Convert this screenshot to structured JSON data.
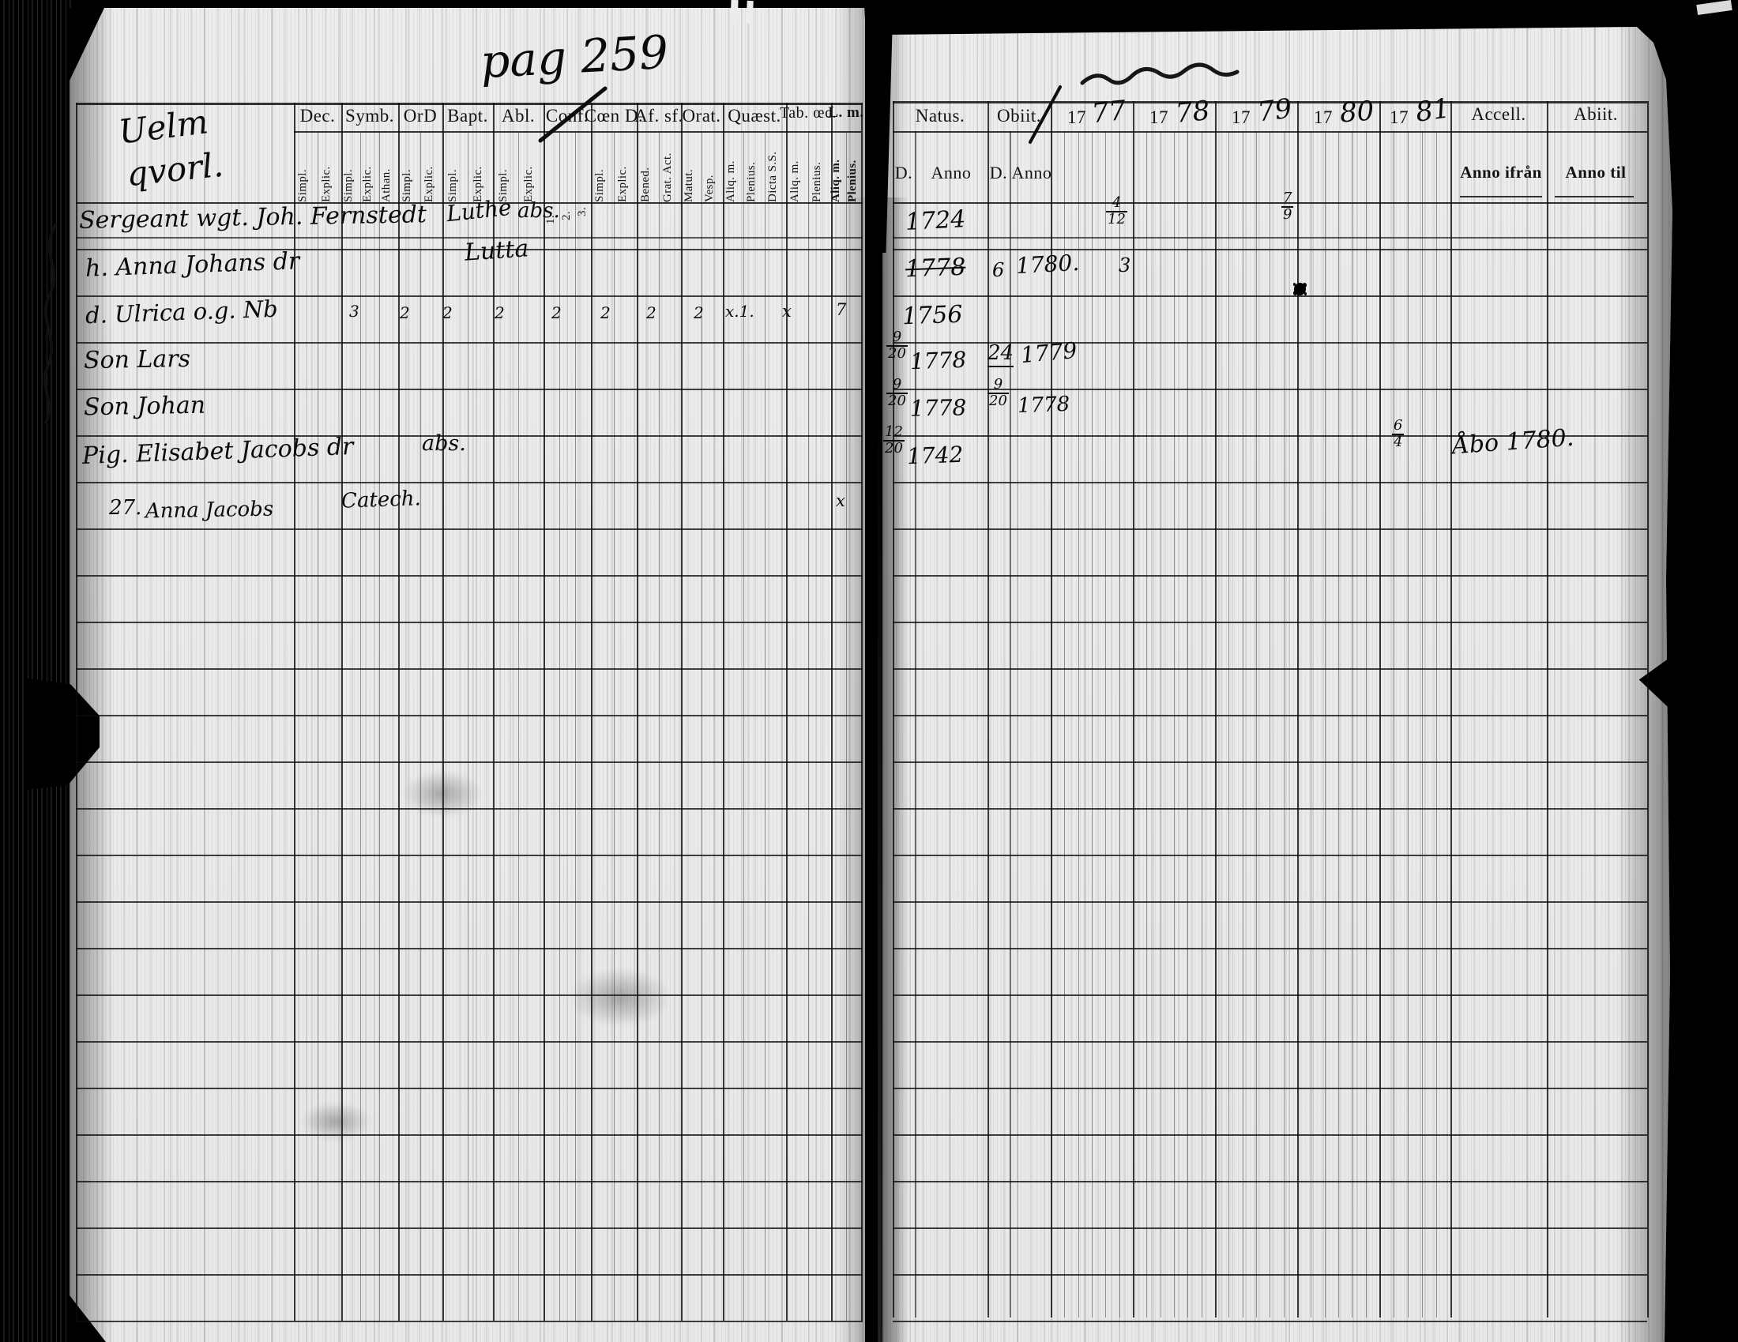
{
  "page_number": "pag 259",
  "left": {
    "title1": "Uelm",
    "title2": "qvorl.",
    "columns": [
      {
        "label": "Dec.",
        "subs": [
          "Simpl.",
          "Explic."
        ]
      },
      {
        "label": "Symb.",
        "subs": [
          "Simpl.",
          "Explic.",
          "Athan."
        ]
      },
      {
        "label": "OrD",
        "subs": [
          "Simpl.",
          "Explic."
        ]
      },
      {
        "label": "Bapt.",
        "subs": [
          "Simpl.",
          "Explic."
        ]
      },
      {
        "label": "Abl.",
        "subs": [
          "Simpl.",
          "Explic."
        ]
      },
      {
        "label": "Conf.",
        "subs": [
          "1.",
          "2.",
          "3."
        ]
      },
      {
        "label": "Cœn D.",
        "subs": [
          "Simpl.",
          "Explic."
        ]
      },
      {
        "label": "Af. sf.",
        "subs": [
          "Bened.",
          "Grat. Act."
        ]
      },
      {
        "label": "Orat.",
        "subs": [
          "Matut.",
          "Vesp."
        ]
      },
      {
        "label": "Quæst.",
        "subs": [
          "Aliq. m.",
          "Plenius.",
          "Dicta S.S."
        ]
      },
      {
        "label": "Tab. œc.",
        "subs": [
          "Aliq. m.",
          "Plenius."
        ]
      },
      {
        "label": "L. m.",
        "subs": [
          "Aliq. m.",
          "Plenius."
        ]
      }
    ],
    "rows": [
      {
        "name": "Sergeant wgt. Joh. Fernstedt",
        "note": "Luthe",
        "abs": "abs."
      },
      {
        "name": "h. Anna Johans dr",
        "note": "Lutta"
      },
      {
        "name": "d. Ulrica o.g. Nb",
        "marks": [
          "3",
          "2",
          "2",
          "2",
          "2",
          "2",
          "2",
          "2",
          "x.1.",
          "x",
          "7"
        ]
      },
      {
        "name": "Son Lars"
      },
      {
        "name": "Son Johan"
      },
      {
        "name": "Pig. Elisabet Jacobs dr",
        "abs": "abs."
      },
      {
        "prefix": "27.",
        "name": "Anna Jacobs",
        "note": "Catech.",
        "mark": "x"
      }
    ]
  },
  "right": {
    "natus": "Natus.",
    "obiit": "Obiit.",
    "accell": "Accell.",
    "abiit": "Abiit.",
    "d1": "D.",
    "anno1": "Anno",
    "d2": "D.",
    "anno2": "Anno",
    "anno_ifran": "Anno ifrån",
    "anno_til": "Anno til",
    "years": [
      {
        "printed": "17",
        "written": "77"
      },
      {
        "printed": "17",
        "written": "78"
      },
      {
        "printed": "17",
        "written": "79"
      },
      {
        "printed": "17",
        "written": "80"
      },
      {
        "printed": "17",
        "written": "81"
      }
    ],
    "rows": [
      {
        "natus_anno": "1724",
        "m1778": {
          "n": "4",
          "d": "12"
        },
        "m1780": {
          "n": "7",
          "d": "9"
        }
      },
      {
        "natus_anno": "1778",
        "obiit_d": "6",
        "obiit_anno": "1780.",
        "m1778": "3"
      },
      {
        "natus_anno": "1756"
      },
      {
        "natus_d": {
          "n": "9",
          "d": "20"
        },
        "natus_anno": "1778",
        "obiit_d": "24",
        "obiit_anno": "1779"
      },
      {
        "natus_d": {
          "n": "9",
          "d": "20"
        },
        "natus_anno": "1778",
        "obiit_d2": {
          "n": "9",
          "d": "20"
        },
        "obiit_anno": "1778"
      },
      {
        "natus_d": {
          "n": "12",
          "d": "20"
        },
        "natus_anno": "1742",
        "m1781": {
          "n": "6",
          "d": "4"
        },
        "accell": "Åbo 1780."
      }
    ]
  }
}
